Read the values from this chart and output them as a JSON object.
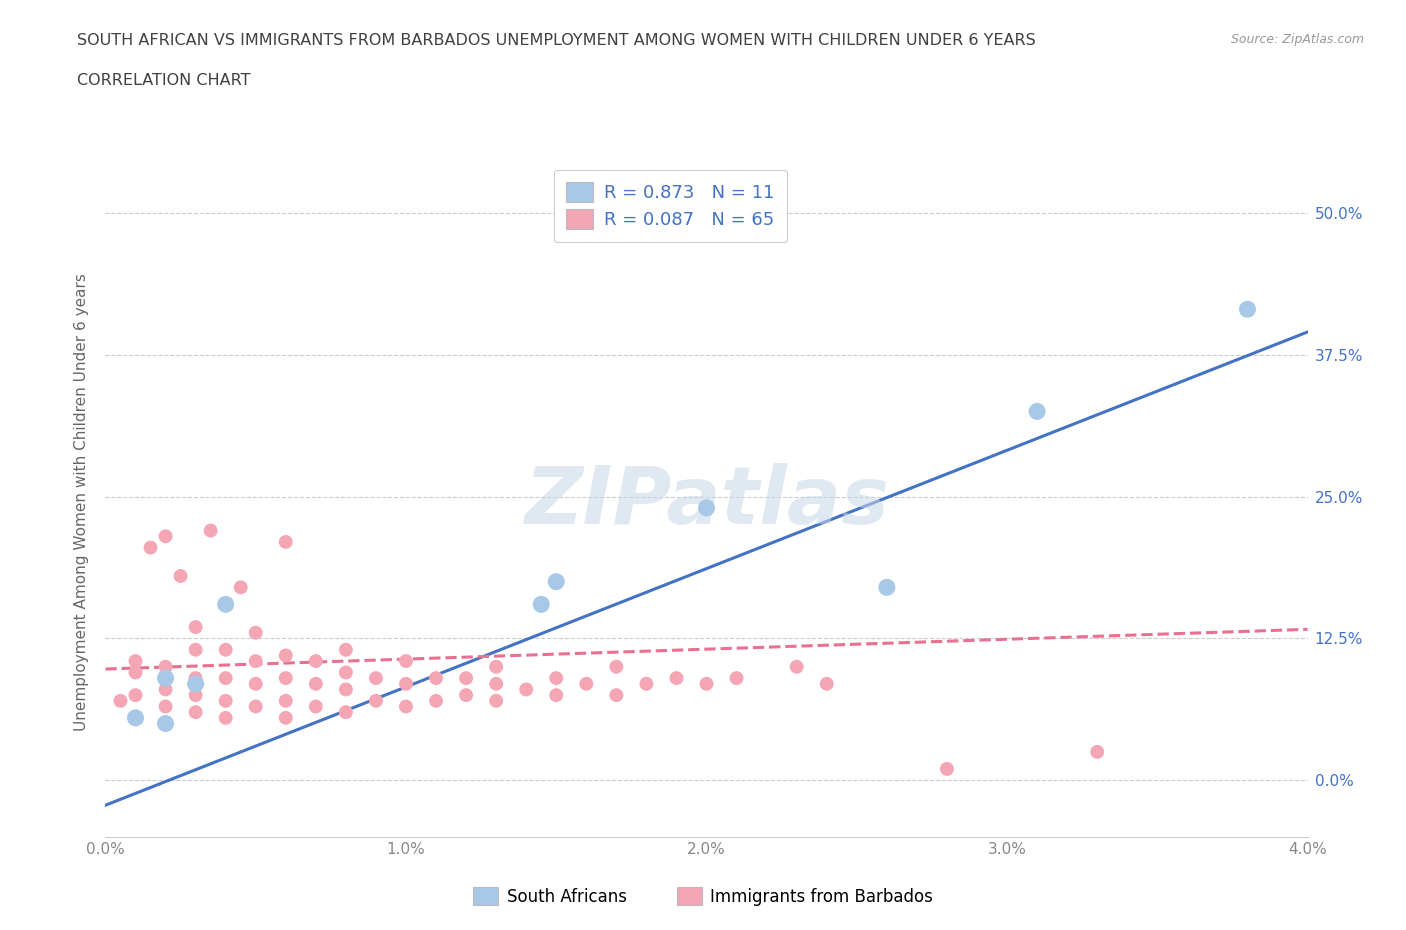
{
  "title_line1": "SOUTH AFRICAN VS IMMIGRANTS FROM BARBADOS UNEMPLOYMENT AMONG WOMEN WITH CHILDREN UNDER 6 YEARS",
  "title_line2": "CORRELATION CHART",
  "source": "Source: ZipAtlas.com",
  "ylabel": "Unemployment Among Women with Children Under 6 years",
  "xlim": [
    0.0,
    0.04
  ],
  "ylim": [
    -0.05,
    0.54
  ],
  "yticks": [
    0.0,
    0.125,
    0.25,
    0.375,
    0.5
  ],
  "ytick_labels": [
    "0.0%",
    "12.5%",
    "25.0%",
    "37.5%",
    "50.0%"
  ],
  "xticks": [
    0.0,
    0.01,
    0.02,
    0.03,
    0.04
  ],
  "xtick_labels": [
    "0.0%",
    "1.0%",
    "2.0%",
    "3.0%",
    "4.0%"
  ],
  "blue_color": "#A8C8E8",
  "pink_color": "#F4A6B5",
  "blue_line_color": "#4472C4",
  "pink_line_color": "#E87090",
  "text_color": "#4472C4",
  "title_color": "#404040",
  "sa_R": 0.873,
  "sa_N": 11,
  "bb_R": 0.087,
  "bb_N": 65,
  "sa_line_x0": 0.0,
  "sa_line_y0": -0.022,
  "sa_line_x1": 0.04,
  "sa_line_y1": 0.395,
  "bb_line_x0": 0.0,
  "bb_line_y0": 0.098,
  "bb_line_x1": 0.04,
  "bb_line_y1": 0.133,
  "south_africans_x": [
    0.001,
    0.002,
    0.002,
    0.003,
    0.004,
    0.0145,
    0.015,
    0.02,
    0.026,
    0.031,
    0.038
  ],
  "south_africans_y": [
    0.055,
    0.05,
    0.09,
    0.085,
    0.155,
    0.155,
    0.175,
    0.24,
    0.17,
    0.325,
    0.415
  ],
  "barbados_x": [
    0.0005,
    0.001,
    0.001,
    0.001,
    0.001,
    0.0015,
    0.002,
    0.002,
    0.002,
    0.002,
    0.0025,
    0.003,
    0.003,
    0.003,
    0.003,
    0.003,
    0.0035,
    0.004,
    0.004,
    0.004,
    0.004,
    0.004,
    0.0045,
    0.005,
    0.005,
    0.005,
    0.005,
    0.006,
    0.006,
    0.006,
    0.006,
    0.006,
    0.007,
    0.007,
    0.007,
    0.008,
    0.008,
    0.008,
    0.008,
    0.009,
    0.009,
    0.01,
    0.01,
    0.01,
    0.011,
    0.011,
    0.012,
    0.012,
    0.013,
    0.013,
    0.013,
    0.014,
    0.015,
    0.015,
    0.016,
    0.017,
    0.017,
    0.018,
    0.019,
    0.02,
    0.021,
    0.023,
    0.024,
    0.028,
    0.033
  ],
  "barbados_y": [
    0.07,
    0.055,
    0.075,
    0.095,
    0.105,
    0.205,
    0.065,
    0.08,
    0.1,
    0.215,
    0.18,
    0.06,
    0.075,
    0.09,
    0.115,
    0.135,
    0.22,
    0.055,
    0.07,
    0.09,
    0.115,
    0.155,
    0.17,
    0.065,
    0.085,
    0.105,
    0.13,
    0.055,
    0.07,
    0.09,
    0.11,
    0.21,
    0.065,
    0.085,
    0.105,
    0.06,
    0.08,
    0.095,
    0.115,
    0.07,
    0.09,
    0.065,
    0.085,
    0.105,
    0.07,
    0.09,
    0.075,
    0.09,
    0.07,
    0.085,
    0.1,
    0.08,
    0.075,
    0.09,
    0.085,
    0.075,
    0.1,
    0.085,
    0.09,
    0.085,
    0.09,
    0.1,
    0.085,
    0.01,
    0.025
  ]
}
